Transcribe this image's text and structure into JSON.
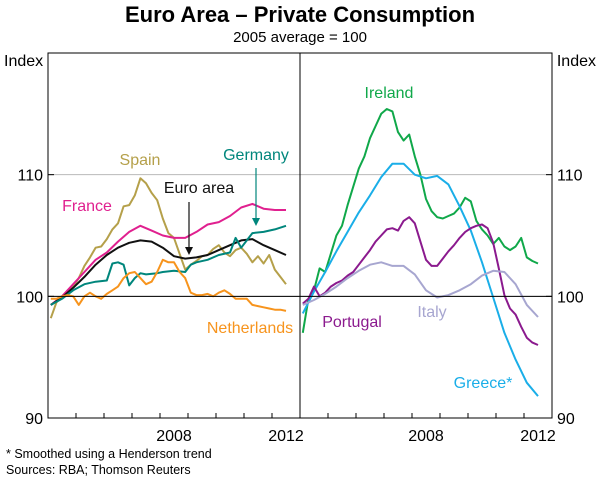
{
  "title": "Euro Area – Private Consumption",
  "subtitle": "2005 average = 100",
  "footnotes": [
    "*     Smoothed using a Henderson trend",
    "Sources: RBA; Thomson Reuters"
  ],
  "chart_data": {
    "type": "line",
    "title": "Euro Area – Private Consumption",
    "subtitle": "2005 average = 100",
    "ylabel_left": "Index",
    "ylabel_right": "Index",
    "ylim": [
      90,
      120
    ],
    "yticks": [
      90,
      100,
      110
    ],
    "baseline": 100,
    "xlim": [
      2004,
      2013
    ],
    "xticks": [
      2008,
      2012
    ],
    "colors": {
      "Spain": "#b5a04a",
      "France": "#e0208f",
      "Euro area": "#111111",
      "Germany": "#00867c",
      "Netherlands": "#f7941d",
      "Ireland": "#10a84a",
      "Greece*": "#1aaee8",
      "Portugal": "#8b1a8e",
      "Italy": "#a7a6d0"
    },
    "panels": [
      {
        "name": "left",
        "series": [
          {
            "name": "Spain",
            "x": [
              2004.1,
              2004.3,
              2004.5,
              2004.7,
              2004.9,
              2005.1,
              2005.3,
              2005.5,
              2005.7,
              2005.9,
              2006.1,
              2006.3,
              2006.5,
              2006.7,
              2006.9,
              2007.1,
              2007.3,
              2007.5,
              2007.7,
              2007.9,
              2008.1,
              2008.3,
              2008.5,
              2008.7,
              2008.9,
              2009.1,
              2009.3,
              2009.5,
              2009.7,
              2009.9,
              2010.1,
              2010.3,
              2010.5,
              2010.7,
              2010.9,
              2011.1,
              2011.3,
              2011.5,
              2011.7,
              2011.9,
              2012.1,
              2012.3,
              2012.5
            ],
            "values": [
              98.2,
              99.5,
              100.0,
              100.3,
              100.8,
              101.5,
              102.5,
              103.2,
              104.0,
              104.1,
              104.7,
              105.5,
              106.0,
              107.4,
              107.5,
              108.3,
              109.7,
              109.3,
              108.5,
              107.9,
              106.4,
              105.2,
              104.8,
              103.5,
              102.2,
              102.6,
              102.9,
              103.3,
              103.4,
              103.9,
              104.2,
              103.6,
              103.3,
              103.8,
              104.0,
              103.5,
              102.8,
              103.3,
              102.7,
              103.4,
              102.2,
              101.6,
              101.0
            ]
          },
          {
            "name": "France",
            "x": [
              2004.1,
              2004.5,
              2004.9,
              2005.3,
              2005.7,
              2006.1,
              2006.5,
              2006.9,
              2007.3,
              2007.7,
              2008.1,
              2008.5,
              2008.9,
              2009.3,
              2009.7,
              2010.1,
              2010.5,
              2010.9,
              2011.3,
              2011.7,
              2012.1,
              2012.5
            ],
            "values": [
              99.3,
              100.0,
              101.0,
              102.0,
              103.0,
              103.6,
              104.5,
              105.3,
              105.8,
              105.4,
              105.0,
              104.8,
              104.8,
              105.3,
              105.9,
              106.1,
              106.6,
              107.3,
              107.6,
              107.2,
              107.1,
              107.1
            ]
          },
          {
            "name": "Euro area",
            "x": [
              2004.1,
              2004.5,
              2004.9,
              2005.3,
              2005.7,
              2006.1,
              2006.5,
              2006.9,
              2007.3,
              2007.7,
              2008.1,
              2008.5,
              2008.9,
              2009.3,
              2009.7,
              2010.1,
              2010.5,
              2010.9,
              2011.3,
              2011.7,
              2012.1,
              2012.5
            ],
            "values": [
              99.3,
              99.9,
              100.7,
              101.6,
              102.6,
              103.4,
              104.0,
              104.4,
              104.6,
              104.5,
              104.0,
              103.3,
              103.1,
              103.2,
              103.4,
              103.8,
              104.2,
              104.6,
              104.7,
              104.2,
              103.8,
              103.4
            ]
          },
          {
            "name": "Germany",
            "x": [
              2004.1,
              2004.5,
              2004.9,
              2005.3,
              2005.7,
              2006.1,
              2006.3,
              2006.5,
              2006.7,
              2006.9,
              2007.1,
              2007.3,
              2007.5,
              2007.9,
              2008.1,
              2008.5,
              2008.9,
              2009.1,
              2009.3,
              2009.7,
              2010.1,
              2010.5,
              2010.7,
              2010.9,
              2011.1,
              2011.3,
              2011.7,
              2012.1,
              2012.5
            ],
            "values": [
              99.3,
              99.8,
              100.5,
              101.0,
              101.2,
              101.3,
              102.7,
              102.8,
              102.6,
              100.9,
              101.5,
              101.9,
              101.8,
              101.9,
              102.0,
              102.1,
              102.0,
              102.6,
              102.8,
              103.0,
              103.4,
              103.6,
              104.8,
              104.0,
              104.6,
              105.2,
              105.3,
              105.5,
              105.8
            ]
          },
          {
            "name": "Netherlands",
            "x": [
              2004.1,
              2004.3,
              2004.5,
              2004.7,
              2004.9,
              2005.1,
              2005.3,
              2005.5,
              2005.7,
              2005.9,
              2006.1,
              2006.3,
              2006.5,
              2006.7,
              2006.9,
              2007.1,
              2007.3,
              2007.5,
              2007.7,
              2007.9,
              2008.1,
              2008.3,
              2008.5,
              2008.7,
              2008.9,
              2009.1,
              2009.3,
              2009.5,
              2009.7,
              2009.9,
              2010.1,
              2010.3,
              2010.5,
              2010.7,
              2010.9,
              2011.1,
              2011.3,
              2011.5,
              2011.7,
              2011.9,
              2012.1,
              2012.3,
              2012.5
            ],
            "values": [
              99.8,
              99.8,
              100.0,
              100.1,
              100.0,
              99.3,
              100.0,
              100.3,
              100.0,
              99.8,
              100.2,
              100.5,
              100.8,
              101.5,
              101.9,
              102.0,
              101.5,
              101.0,
              101.2,
              102.0,
              103.0,
              102.8,
              102.8,
              102.0,
              101.5,
              100.3,
              100.1,
              100.1,
              100.2,
              100.0,
              100.3,
              100.5,
              100.2,
              99.8,
              99.8,
              99.8,
              99.3,
              99.2,
              99.1,
              99.0,
              98.9,
              98.9,
              98.8
            ]
          }
        ],
        "annotations": [
          {
            "text": "Spain",
            "series": "Spain"
          },
          {
            "text": "France",
            "series": "France"
          },
          {
            "text": "Euro area",
            "series": "Euro area",
            "arrow": true
          },
          {
            "text": "Germany",
            "series": "Germany",
            "arrow": true
          },
          {
            "text": "Netherlands",
            "series": "Netherlands"
          }
        ]
      },
      {
        "name": "right",
        "series": [
          {
            "name": "Ireland",
            "x": [
              2004.1,
              2004.3,
              2004.5,
              2004.7,
              2004.9,
              2005.1,
              2005.3,
              2005.5,
              2005.7,
              2005.9,
              2006.1,
              2006.3,
              2006.5,
              2006.7,
              2006.9,
              2007.1,
              2007.3,
              2007.5,
              2007.7,
              2007.9,
              2008.1,
              2008.3,
              2008.5,
              2008.7,
              2008.9,
              2009.1,
              2009.3,
              2009.5,
              2009.7,
              2009.9,
              2010.1,
              2010.3,
              2010.5,
              2010.7,
              2010.9,
              2011.1,
              2011.3,
              2011.5,
              2011.7,
              2011.9,
              2012.1,
              2012.3,
              2012.5
            ],
            "values": [
              97.0,
              99.8,
              100.5,
              102.3,
              102.0,
              103.5,
              105.0,
              105.8,
              107.5,
              109.0,
              110.5,
              111.5,
              113.0,
              114.0,
              115.0,
              115.4,
              115.2,
              113.5,
              112.8,
              113.3,
              111.5,
              110.0,
              108.0,
              107.0,
              106.5,
              106.4,
              106.6,
              106.8,
              107.3,
              108.1,
              107.8,
              106.2,
              105.5,
              105.0,
              104.3,
              104.8,
              104.1,
              103.8,
              104.1,
              104.8,
              103.2,
              102.9,
              102.7
            ]
          },
          {
            "name": "Greece*",
            "x": [
              2004.1,
              2004.5,
              2004.9,
              2005.3,
              2005.7,
              2006.1,
              2006.5,
              2006.9,
              2007.3,
              2007.7,
              2008.1,
              2008.5,
              2008.9,
              2009.3,
              2009.7,
              2010.1,
              2010.5,
              2010.9,
              2011.3,
              2011.7,
              2012.1,
              2012.5
            ],
            "values": [
              98.6,
              100.4,
              102.0,
              103.7,
              105.3,
              106.9,
              108.3,
              109.8,
              110.9,
              110.9,
              110.0,
              109.7,
              109.9,
              109.2,
              107.4,
              105.4,
              102.8,
              99.9,
              97.0,
              94.8,
              92.9,
              91.8
            ]
          },
          {
            "name": "Portugal",
            "x": [
              2004.1,
              2004.3,
              2004.5,
              2004.7,
              2004.9,
              2005.1,
              2005.3,
              2005.5,
              2005.7,
              2005.9,
              2006.1,
              2006.3,
              2006.5,
              2006.7,
              2006.9,
              2007.1,
              2007.3,
              2007.5,
              2007.7,
              2007.9,
              2008.1,
              2008.3,
              2008.5,
              2008.7,
              2008.9,
              2009.1,
              2009.3,
              2009.5,
              2009.7,
              2009.9,
              2010.1,
              2010.3,
              2010.5,
              2010.7,
              2010.9,
              2011.1,
              2011.3,
              2011.5,
              2011.7,
              2011.9,
              2012.1,
              2012.3,
              2012.5
            ],
            "values": [
              99.4,
              99.8,
              100.8,
              100.0,
              100.3,
              100.8,
              101.1,
              101.3,
              101.7,
              102.0,
              102.6,
              103.2,
              103.8,
              104.5,
              105.0,
              105.5,
              105.6,
              105.4,
              106.2,
              106.5,
              106.0,
              104.5,
              103.0,
              102.5,
              102.5,
              103.1,
              103.7,
              104.2,
              104.8,
              105.3,
              105.6,
              105.8,
              105.9,
              105.6,
              104.4,
              102.3,
              100.1,
              99.0,
              98.5,
              97.5,
              96.6,
              96.2,
              96.0
            ]
          },
          {
            "name": "Italy",
            "x": [
              2004.1,
              2004.5,
              2004.9,
              2005.3,
              2005.7,
              2006.1,
              2006.5,
              2006.9,
              2007.3,
              2007.7,
              2008.1,
              2008.5,
              2008.9,
              2009.3,
              2009.7,
              2010.1,
              2010.5,
              2010.9,
              2011.3,
              2011.7,
              2012.1,
              2012.5
            ],
            "values": [
              99.3,
              99.7,
              100.2,
              100.8,
              101.5,
              102.1,
              102.6,
              102.8,
              102.5,
              102.5,
              101.8,
              100.5,
              99.9,
              100.1,
              100.5,
              101.0,
              101.7,
              102.1,
              102.0,
              101.0,
              99.3,
              98.3
            ]
          }
        ],
        "annotations": [
          {
            "text": "Ireland",
            "series": "Ireland"
          },
          {
            "text": "Portugal",
            "series": "Portugal"
          },
          {
            "text": "Italy",
            "series": "Italy"
          },
          {
            "text": "Greece*",
            "series": "Greece*"
          }
        ]
      }
    ]
  }
}
